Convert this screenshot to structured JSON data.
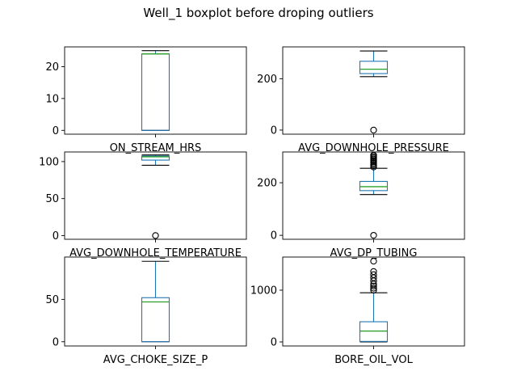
{
  "figure": {
    "title": "Well_1 boxplot before droping outliers"
  },
  "chart_data": [
    {
      "type": "boxplot",
      "xlabel": "ON_STREAM_HRS",
      "ylim": [
        -1.2,
        26.2
      ],
      "yticks": [
        0,
        10,
        20
      ],
      "box": {
        "whisker_low": 0,
        "q1": 0,
        "median": 24,
        "q3": 24,
        "whisker_high": 25
      },
      "outliers": []
    },
    {
      "type": "boxplot",
      "xlabel": "AVG_DOWNHOLE_PRESSURE",
      "ylim": [
        -16,
        324
      ],
      "yticks": [
        0,
        200
      ],
      "box": {
        "whisker_low": 208,
        "q1": 220,
        "median": 237,
        "q3": 268,
        "whisker_high": 308
      },
      "outliers": [
        0
      ]
    },
    {
      "type": "boxplot",
      "xlabel": "AVG_DOWNHOLE_TEMPERATURE",
      "ylim": [
        -5,
        113
      ],
      "yticks": [
        0,
        50,
        100
      ],
      "box": {
        "whisker_low": 95,
        "q1": 102,
        "median": 106.5,
        "q3": 107.5,
        "whisker_high": 109
      },
      "outliers": [
        0
      ]
    },
    {
      "type": "boxplot",
      "xlabel": "AVG_DP_TUBING",
      "ylim": [
        -15,
        317
      ],
      "yticks": [
        0,
        200
      ],
      "box": {
        "whisker_low": 155,
        "q1": 170,
        "median": 185,
        "q3": 205,
        "whisker_high": 255
      },
      "outliers": [
        0,
        260,
        265,
        270,
        275,
        280,
        285,
        290,
        295,
        300,
        305
      ]
    },
    {
      "type": "boxplot",
      "xlabel": "AVG_CHOKE_SIZE_P",
      "ylim": [
        -5,
        100
      ],
      "yticks": [
        0,
        50
      ],
      "box": {
        "whisker_low": 0,
        "q1": 0,
        "median": 47,
        "q3": 52,
        "whisker_high": 95
      },
      "outliers": []
    },
    {
      "type": "boxplot",
      "xlabel": "BORE_OIL_VOL",
      "ylim": [
        -78,
        1640
      ],
      "yticks": [
        0,
        1000
      ],
      "box": {
        "whisker_low": 0,
        "q1": 10,
        "median": 210,
        "q3": 390,
        "whisker_high": 950
      },
      "outliers": [
        1000,
        1040,
        1080,
        1120,
        1180,
        1240,
        1300,
        1360,
        1560
      ]
    }
  ]
}
